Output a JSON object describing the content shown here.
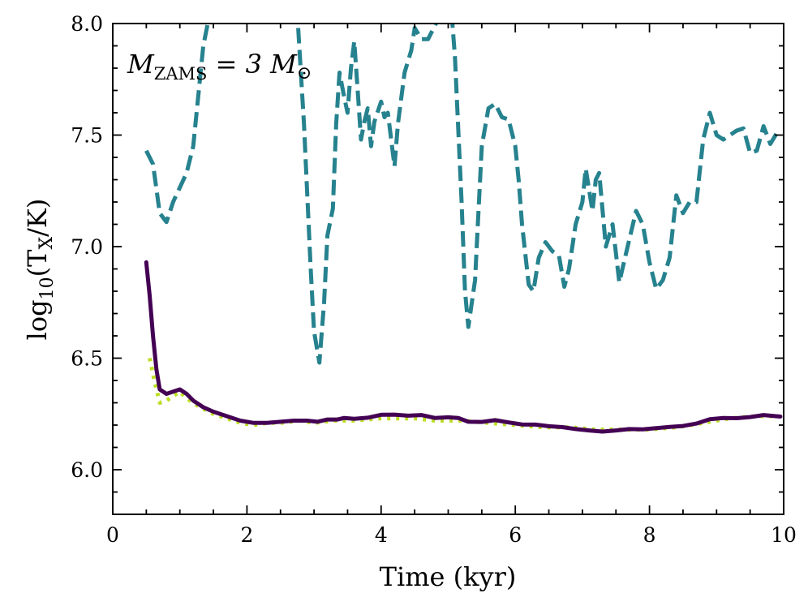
{
  "chart_data": {
    "type": "line",
    "xlabel": "Time (kyr)",
    "ylabel_parts": [
      "log",
      "10",
      "(T",
      "X",
      "/K)"
    ],
    "annotation_parts": [
      "M",
      "ZAMS",
      " = 3 M",
      "⊙"
    ],
    "xlim": [
      0,
      10
    ],
    "ylim": [
      5.8,
      8.0
    ],
    "xticks": [
      0,
      2,
      4,
      6,
      8,
      10
    ],
    "xtick_labels": [
      "0",
      "2",
      "4",
      "6",
      "8",
      "10"
    ],
    "yticks": [
      6.0,
      6.5,
      7.0,
      7.5,
      8.0
    ],
    "ytick_labels": [
      "6.0",
      "6.5",
      "7.0",
      "7.5",
      "8.0"
    ],
    "x_minor_step": 0.5,
    "y_minor_step": 0.1,
    "series": [
      {
        "name": "dashed-teal",
        "color": "#26828e",
        "style": "dashed",
        "points": [
          [
            0.5,
            7.43
          ],
          [
            0.6,
            7.37
          ],
          [
            0.7,
            7.15
          ],
          [
            0.8,
            7.11
          ],
          [
            0.9,
            7.2
          ],
          [
            1.1,
            7.33
          ],
          [
            1.2,
            7.45
          ],
          [
            1.35,
            7.9
          ],
          [
            1.45,
            8.05
          ],
          [
            2.75,
            8.05
          ],
          [
            2.85,
            7.55
          ],
          [
            2.95,
            6.9
          ],
          [
            3.0,
            6.62
          ],
          [
            3.08,
            6.48
          ],
          [
            3.15,
            6.75
          ],
          [
            3.2,
            7.05
          ],
          [
            3.28,
            7.17
          ],
          [
            3.33,
            7.55
          ],
          [
            3.38,
            7.78
          ],
          [
            3.45,
            7.67
          ],
          [
            3.5,
            7.6
          ],
          [
            3.55,
            7.8
          ],
          [
            3.6,
            7.92
          ],
          [
            3.65,
            7.7
          ],
          [
            3.7,
            7.48
          ],
          [
            3.75,
            7.56
          ],
          [
            3.8,
            7.62
          ],
          [
            3.85,
            7.45
          ],
          [
            3.9,
            7.56
          ],
          [
            4.0,
            7.65
          ],
          [
            4.05,
            7.58
          ],
          [
            4.1,
            7.6
          ],
          [
            4.2,
            7.36
          ],
          [
            4.25,
            7.55
          ],
          [
            4.35,
            7.78
          ],
          [
            4.45,
            7.88
          ],
          [
            4.5,
            7.98
          ],
          [
            4.6,
            7.93
          ],
          [
            4.7,
            7.93
          ],
          [
            4.85,
            8.02
          ],
          [
            5.05,
            8.05
          ],
          [
            5.1,
            7.85
          ],
          [
            5.2,
            7.2
          ],
          [
            5.25,
            6.8
          ],
          [
            5.3,
            6.64
          ],
          [
            5.4,
            6.85
          ],
          [
            5.45,
            7.15
          ],
          [
            5.5,
            7.45
          ],
          [
            5.6,
            7.62
          ],
          [
            5.7,
            7.64
          ],
          [
            5.8,
            7.58
          ],
          [
            5.9,
            7.57
          ],
          [
            6.0,
            7.45
          ],
          [
            6.05,
            7.3
          ],
          [
            6.1,
            7.1
          ],
          [
            6.2,
            6.83
          ],
          [
            6.27,
            6.8
          ],
          [
            6.35,
            6.95
          ],
          [
            6.45,
            7.02
          ],
          [
            6.55,
            6.98
          ],
          [
            6.65,
            6.96
          ],
          [
            6.73,
            6.82
          ],
          [
            6.8,
            6.9
          ],
          [
            6.9,
            7.1
          ],
          [
            7.0,
            7.2
          ],
          [
            7.05,
            7.35
          ],
          [
            7.15,
            7.16
          ],
          [
            7.2,
            7.3
          ],
          [
            7.25,
            7.33
          ],
          [
            7.35,
            7.0
          ],
          [
            7.45,
            7.1
          ],
          [
            7.55,
            6.84
          ],
          [
            7.65,
            6.97
          ],
          [
            7.8,
            7.16
          ],
          [
            7.9,
            7.1
          ],
          [
            8.0,
            6.93
          ],
          [
            8.1,
            6.81
          ],
          [
            8.2,
            6.85
          ],
          [
            8.3,
            6.95
          ],
          [
            8.4,
            7.23
          ],
          [
            8.5,
            7.15
          ],
          [
            8.6,
            7.2
          ],
          [
            8.7,
            7.2
          ],
          [
            8.8,
            7.48
          ],
          [
            8.9,
            7.6
          ],
          [
            9.0,
            7.5
          ],
          [
            9.1,
            7.48
          ],
          [
            9.3,
            7.52
          ],
          [
            9.4,
            7.53
          ],
          [
            9.5,
            7.42
          ],
          [
            9.6,
            7.43
          ],
          [
            9.7,
            7.54
          ],
          [
            9.8,
            7.46
          ],
          [
            9.9,
            7.51
          ]
        ]
      },
      {
        "name": "dotted-lime",
        "color": "#bddf26",
        "style": "dotted",
        "points": [
          [
            0.55,
            6.5
          ],
          [
            0.62,
            6.4
          ],
          [
            0.7,
            6.3
          ],
          [
            0.8,
            6.31
          ],
          [
            0.9,
            6.33
          ],
          [
            1.0,
            6.35
          ],
          [
            1.1,
            6.32
          ],
          [
            1.3,
            6.28
          ],
          [
            1.5,
            6.25
          ],
          [
            1.7,
            6.23
          ],
          [
            1.9,
            6.21
          ],
          [
            2.1,
            6.2
          ],
          [
            2.3,
            6.21
          ],
          [
            2.5,
            6.21
          ],
          [
            2.8,
            6.22
          ],
          [
            3.0,
            6.21
          ],
          [
            3.3,
            6.22
          ],
          [
            3.6,
            6.22
          ],
          [
            4.0,
            6.23
          ],
          [
            4.2,
            6.23
          ],
          [
            4.5,
            6.23
          ],
          [
            4.8,
            6.22
          ],
          [
            5.2,
            6.22
          ],
          [
            5.6,
            6.21
          ],
          [
            6.0,
            6.2
          ],
          [
            6.4,
            6.19
          ],
          [
            6.8,
            6.19
          ],
          [
            7.2,
            6.18
          ],
          [
            7.6,
            6.18
          ],
          [
            8.0,
            6.18
          ],
          [
            8.4,
            6.19
          ],
          [
            8.8,
            6.21
          ],
          [
            9.2,
            6.23
          ],
          [
            9.6,
            6.24
          ],
          [
            9.9,
            6.24
          ]
        ]
      },
      {
        "name": "solid-purple",
        "color": "#440154",
        "style": "solid",
        "points": [
          [
            0.5,
            6.93
          ],
          [
            0.55,
            6.78
          ],
          [
            0.6,
            6.6
          ],
          [
            0.65,
            6.45
          ],
          [
            0.7,
            6.36
          ],
          [
            0.8,
            6.34
          ],
          [
            0.9,
            6.35
          ],
          [
            1.0,
            6.36
          ],
          [
            1.1,
            6.34
          ],
          [
            1.2,
            6.31
          ],
          [
            1.35,
            6.28
          ],
          [
            1.5,
            6.26
          ],
          [
            1.7,
            6.24
          ],
          [
            1.9,
            6.22
          ],
          [
            2.1,
            6.21
          ],
          [
            2.3,
            6.21
          ],
          [
            2.5,
            6.215
          ],
          [
            2.7,
            6.22
          ],
          [
            2.9,
            6.22
          ],
          [
            3.05,
            6.215
          ],
          [
            3.2,
            6.225
          ],
          [
            3.35,
            6.225
          ],
          [
            3.45,
            6.232
          ],
          [
            3.6,
            6.228
          ],
          [
            3.8,
            6.233
          ],
          [
            4.0,
            6.246
          ],
          [
            4.2,
            6.247
          ],
          [
            4.4,
            6.242
          ],
          [
            4.6,
            6.245
          ],
          [
            4.8,
            6.232
          ],
          [
            5.0,
            6.235
          ],
          [
            5.15,
            6.232
          ],
          [
            5.3,
            6.215
          ],
          [
            5.5,
            6.214
          ],
          [
            5.7,
            6.222
          ],
          [
            5.9,
            6.212
          ],
          [
            6.1,
            6.203
          ],
          [
            6.3,
            6.202
          ],
          [
            6.5,
            6.195
          ],
          [
            6.7,
            6.191
          ],
          [
            6.9,
            6.182
          ],
          [
            7.1,
            6.176
          ],
          [
            7.3,
            6.171
          ],
          [
            7.5,
            6.176
          ],
          [
            7.7,
            6.182
          ],
          [
            7.9,
            6.181
          ],
          [
            8.1,
            6.186
          ],
          [
            8.3,
            6.192
          ],
          [
            8.5,
            6.196
          ],
          [
            8.7,
            6.207
          ],
          [
            8.9,
            6.226
          ],
          [
            9.1,
            6.232
          ],
          [
            9.3,
            6.231
          ],
          [
            9.5,
            6.236
          ],
          [
            9.7,
            6.245
          ],
          [
            9.95,
            6.238
          ]
        ]
      }
    ]
  }
}
